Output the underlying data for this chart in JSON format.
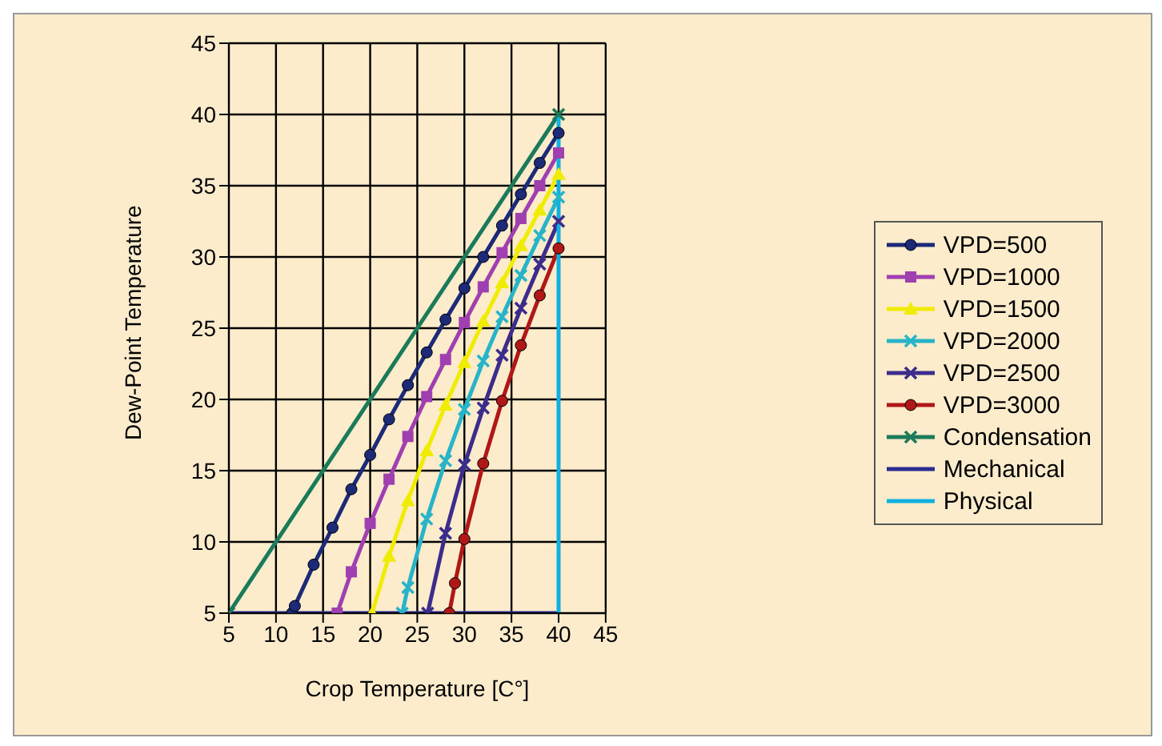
{
  "chart_data": {
    "type": "line",
    "xlabel": "Crop Temperature [C°]",
    "ylabel": "Dew-Point Temperature",
    "xlim": [
      5,
      45
    ],
    "ylim": [
      5,
      45
    ],
    "xticks": [
      5,
      10,
      15,
      20,
      25,
      30,
      35,
      40,
      45
    ],
    "yticks": [
      5,
      10,
      15,
      20,
      25,
      30,
      35,
      40,
      45
    ],
    "grid": true,
    "legend": "right",
    "line_style": "solid",
    "series": [
      {
        "name": "VPD=500",
        "color": "#1c2a78",
        "marker": "circle",
        "x": [
          11.7,
          12,
          14,
          16,
          18,
          20,
          22,
          24,
          26,
          28,
          30,
          32,
          34,
          36,
          38,
          40
        ],
        "values": [
          5,
          5.5,
          8.4,
          11,
          13.7,
          16.1,
          18.6,
          21,
          23.3,
          25.6,
          27.8,
          30,
          32.2,
          34.4,
          36.6,
          38.7
        ]
      },
      {
        "name": "VPD=1000",
        "color": "#a040b0",
        "marker": "square",
        "x": [
          16.5,
          18,
          20,
          22,
          24,
          26,
          28,
          30,
          32,
          34,
          36,
          38,
          40
        ],
        "values": [
          5,
          7.9,
          11.3,
          14.4,
          17.4,
          20.2,
          22.8,
          25.4,
          27.9,
          30.3,
          32.7,
          35,
          37.3
        ]
      },
      {
        "name": "VPD=1500",
        "color": "#f0ec00",
        "marker": "triangle",
        "x": [
          20.2,
          22,
          24,
          26,
          28,
          30,
          32,
          34,
          36,
          38,
          40
        ],
        "values": [
          5,
          9,
          12.9,
          16.4,
          19.6,
          22.6,
          25.5,
          28.2,
          30.8,
          33.3,
          35.8
        ]
      },
      {
        "name": "VPD=2000",
        "color": "#28b4c8",
        "marker": "cross",
        "x": [
          23.4,
          24,
          26,
          28,
          30,
          32,
          34,
          36,
          38,
          40
        ],
        "values": [
          5,
          6.8,
          11.6,
          15.7,
          19.3,
          22.7,
          25.8,
          28.7,
          31.5,
          34.2
        ]
      },
      {
        "name": "VPD=2500",
        "color": "#3c2c8c",
        "marker": "cross",
        "x": [
          26.1,
          28,
          30,
          32,
          34,
          36,
          38,
          40
        ],
        "values": [
          5,
          10.6,
          15.4,
          19.4,
          23.1,
          26.4,
          29.5,
          32.5
        ]
      },
      {
        "name": "VPD=3000",
        "color": "#b01818",
        "marker": "circle",
        "x": [
          28.4,
          29,
          30,
          32,
          34,
          36,
          38,
          40
        ],
        "values": [
          5,
          7.1,
          10.2,
          15.5,
          19.9,
          23.8,
          27.3,
          30.6
        ]
      },
      {
        "name": "Condensation",
        "color": "#1a7a5a",
        "marker": "cross",
        "x": [
          5,
          40
        ],
        "values": [
          5,
          40
        ]
      },
      {
        "name": "Mechanical",
        "color": "#2a2a90",
        "marker": "none",
        "x": [
          5,
          40
        ],
        "values": [
          5,
          5
        ]
      },
      {
        "name": "Physical",
        "color": "#10b0e0",
        "marker": "none",
        "x": [
          40,
          40
        ],
        "values": [
          5,
          40
        ]
      }
    ]
  }
}
